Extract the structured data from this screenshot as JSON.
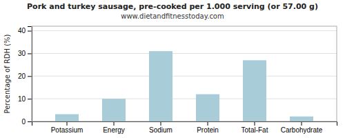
{
  "chart_data": {
    "type": "bar",
    "title": "Pork and turkey sausage, pre-cooked per 1.000 serving (or 57.00 g)",
    "subtitle": "www.dietandfitnesstoday.com",
    "categories": [
      "Potassium",
      "Energy",
      "Sodium",
      "Protein",
      "Total-Fat",
      "Carbohydrate"
    ],
    "values": [
      3.2,
      10.0,
      31.0,
      12.0,
      27.0,
      2.2
    ],
    "color": "#a8cdd8",
    "ylabel": "Percentage of RDH (%)",
    "ylim": [
      0,
      42
    ],
    "yticks": [
      0,
      10,
      20,
      30,
      40
    ],
    "grid": true
  }
}
